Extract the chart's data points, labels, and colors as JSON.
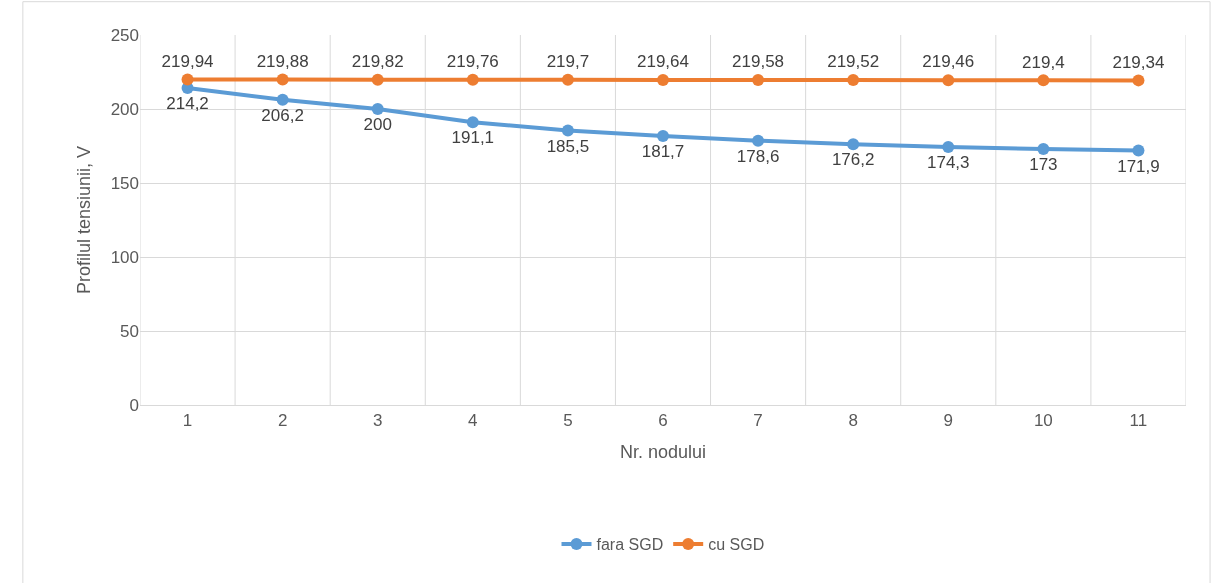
{
  "chart_data": {
    "type": "line",
    "xlabel": "Nr. nodului",
    "ylabel": "Profilul tensiunii, V",
    "categories": [
      "1",
      "2",
      "3",
      "4",
      "5",
      "6",
      "7",
      "8",
      "9",
      "10",
      "11"
    ],
    "series": [
      {
        "name": "fara SGD",
        "color": "#5b9bd5",
        "values": [
          214.2,
          206.2,
          200,
          191.1,
          185.5,
          181.7,
          178.6,
          176.2,
          174.3,
          173,
          171.9
        ],
        "value_labels": [
          "214,2",
          "206,2",
          "200",
          "191,1",
          "185,5",
          "181,7",
          "178,6",
          "176,2",
          "174,3",
          "173",
          "171,9"
        ]
      },
      {
        "name": "cu SGD",
        "color": "#ed7d31",
        "values": [
          219.94,
          219.88,
          219.82,
          219.76,
          219.7,
          219.64,
          219.58,
          219.52,
          219.46,
          219.4,
          219.34
        ],
        "value_labels": [
          "219,94",
          "219,88",
          "219,82",
          "219,76",
          "219,7",
          "219,64",
          "219,58",
          "219,52",
          "219,46",
          "219,4",
          "219,34"
        ]
      }
    ],
    "ylim": [
      0,
      250
    ],
    "yticks": [
      0,
      50,
      100,
      150,
      200,
      250
    ],
    "grid": true,
    "legend": "bottom",
    "marker": "circle",
    "line_style": "solid"
  }
}
